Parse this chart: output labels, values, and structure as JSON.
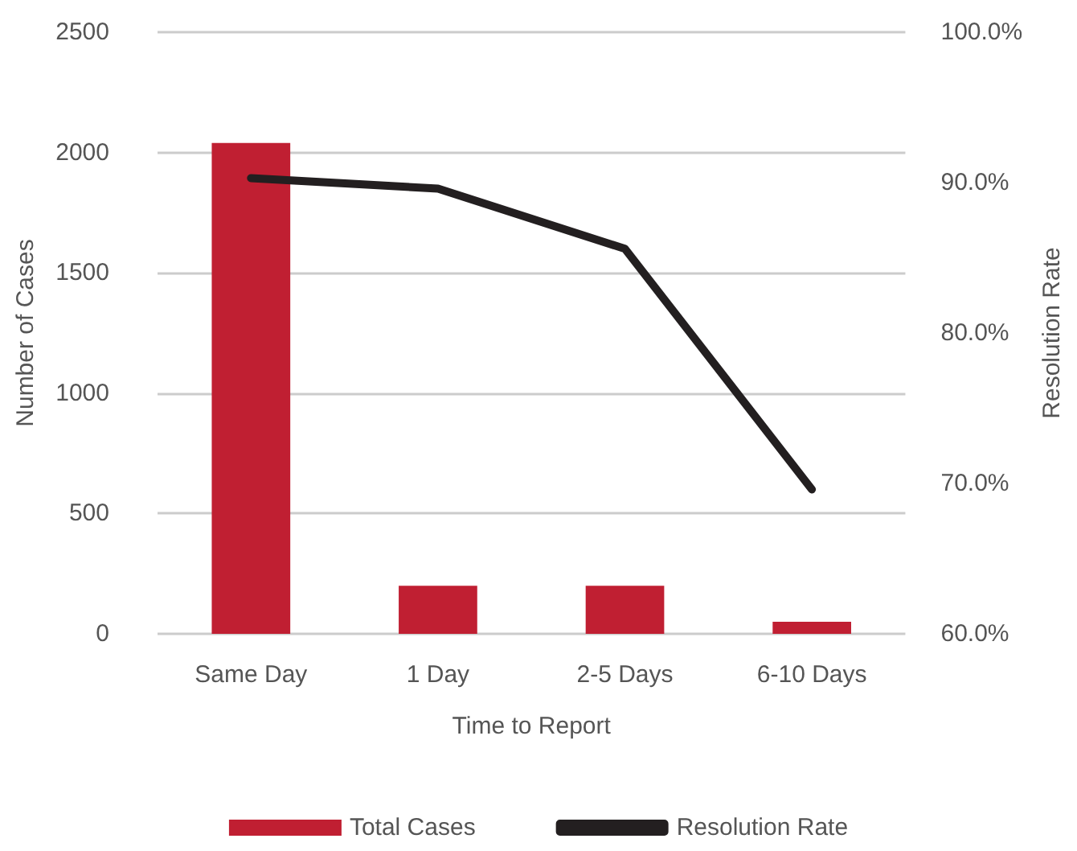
{
  "chart_data": {
    "type": "bar",
    "xlabel": "Time to Report",
    "ylabel": "Number of Cases",
    "y2label": "Resolution Rate",
    "categories": [
      "Same Day",
      "1 Day",
      "2-5 Days",
      "6-10 Days"
    ],
    "series": [
      {
        "name": "Total Cases",
        "color": "#c01f32",
        "values": [
          2040,
          200,
          200,
          50
        ]
      },
      {
        "name": "Resolution Rate",
        "type": "line",
        "axis": "y2",
        "color": "#231f20",
        "values": [
          90.3,
          89.6,
          85.6,
          69.6
        ]
      }
    ],
    "ylim": [
      0,
      2500
    ],
    "yticks": [
      0,
      500,
      1000,
      1500,
      2000,
      2500
    ],
    "y2lim": [
      60,
      100
    ],
    "y2ticks": [
      {
        "value": 60,
        "label": "60.0%"
      },
      {
        "value": 70,
        "label": "70.0%"
      },
      {
        "value": 80,
        "label": "80.0%"
      },
      {
        "value": 90,
        "label": "90.0%"
      },
      {
        "value": 100,
        "label": "100.0%"
      }
    ],
    "grid": "y",
    "legend": "bottom",
    "marker": "none",
    "line_style": "solid"
  }
}
